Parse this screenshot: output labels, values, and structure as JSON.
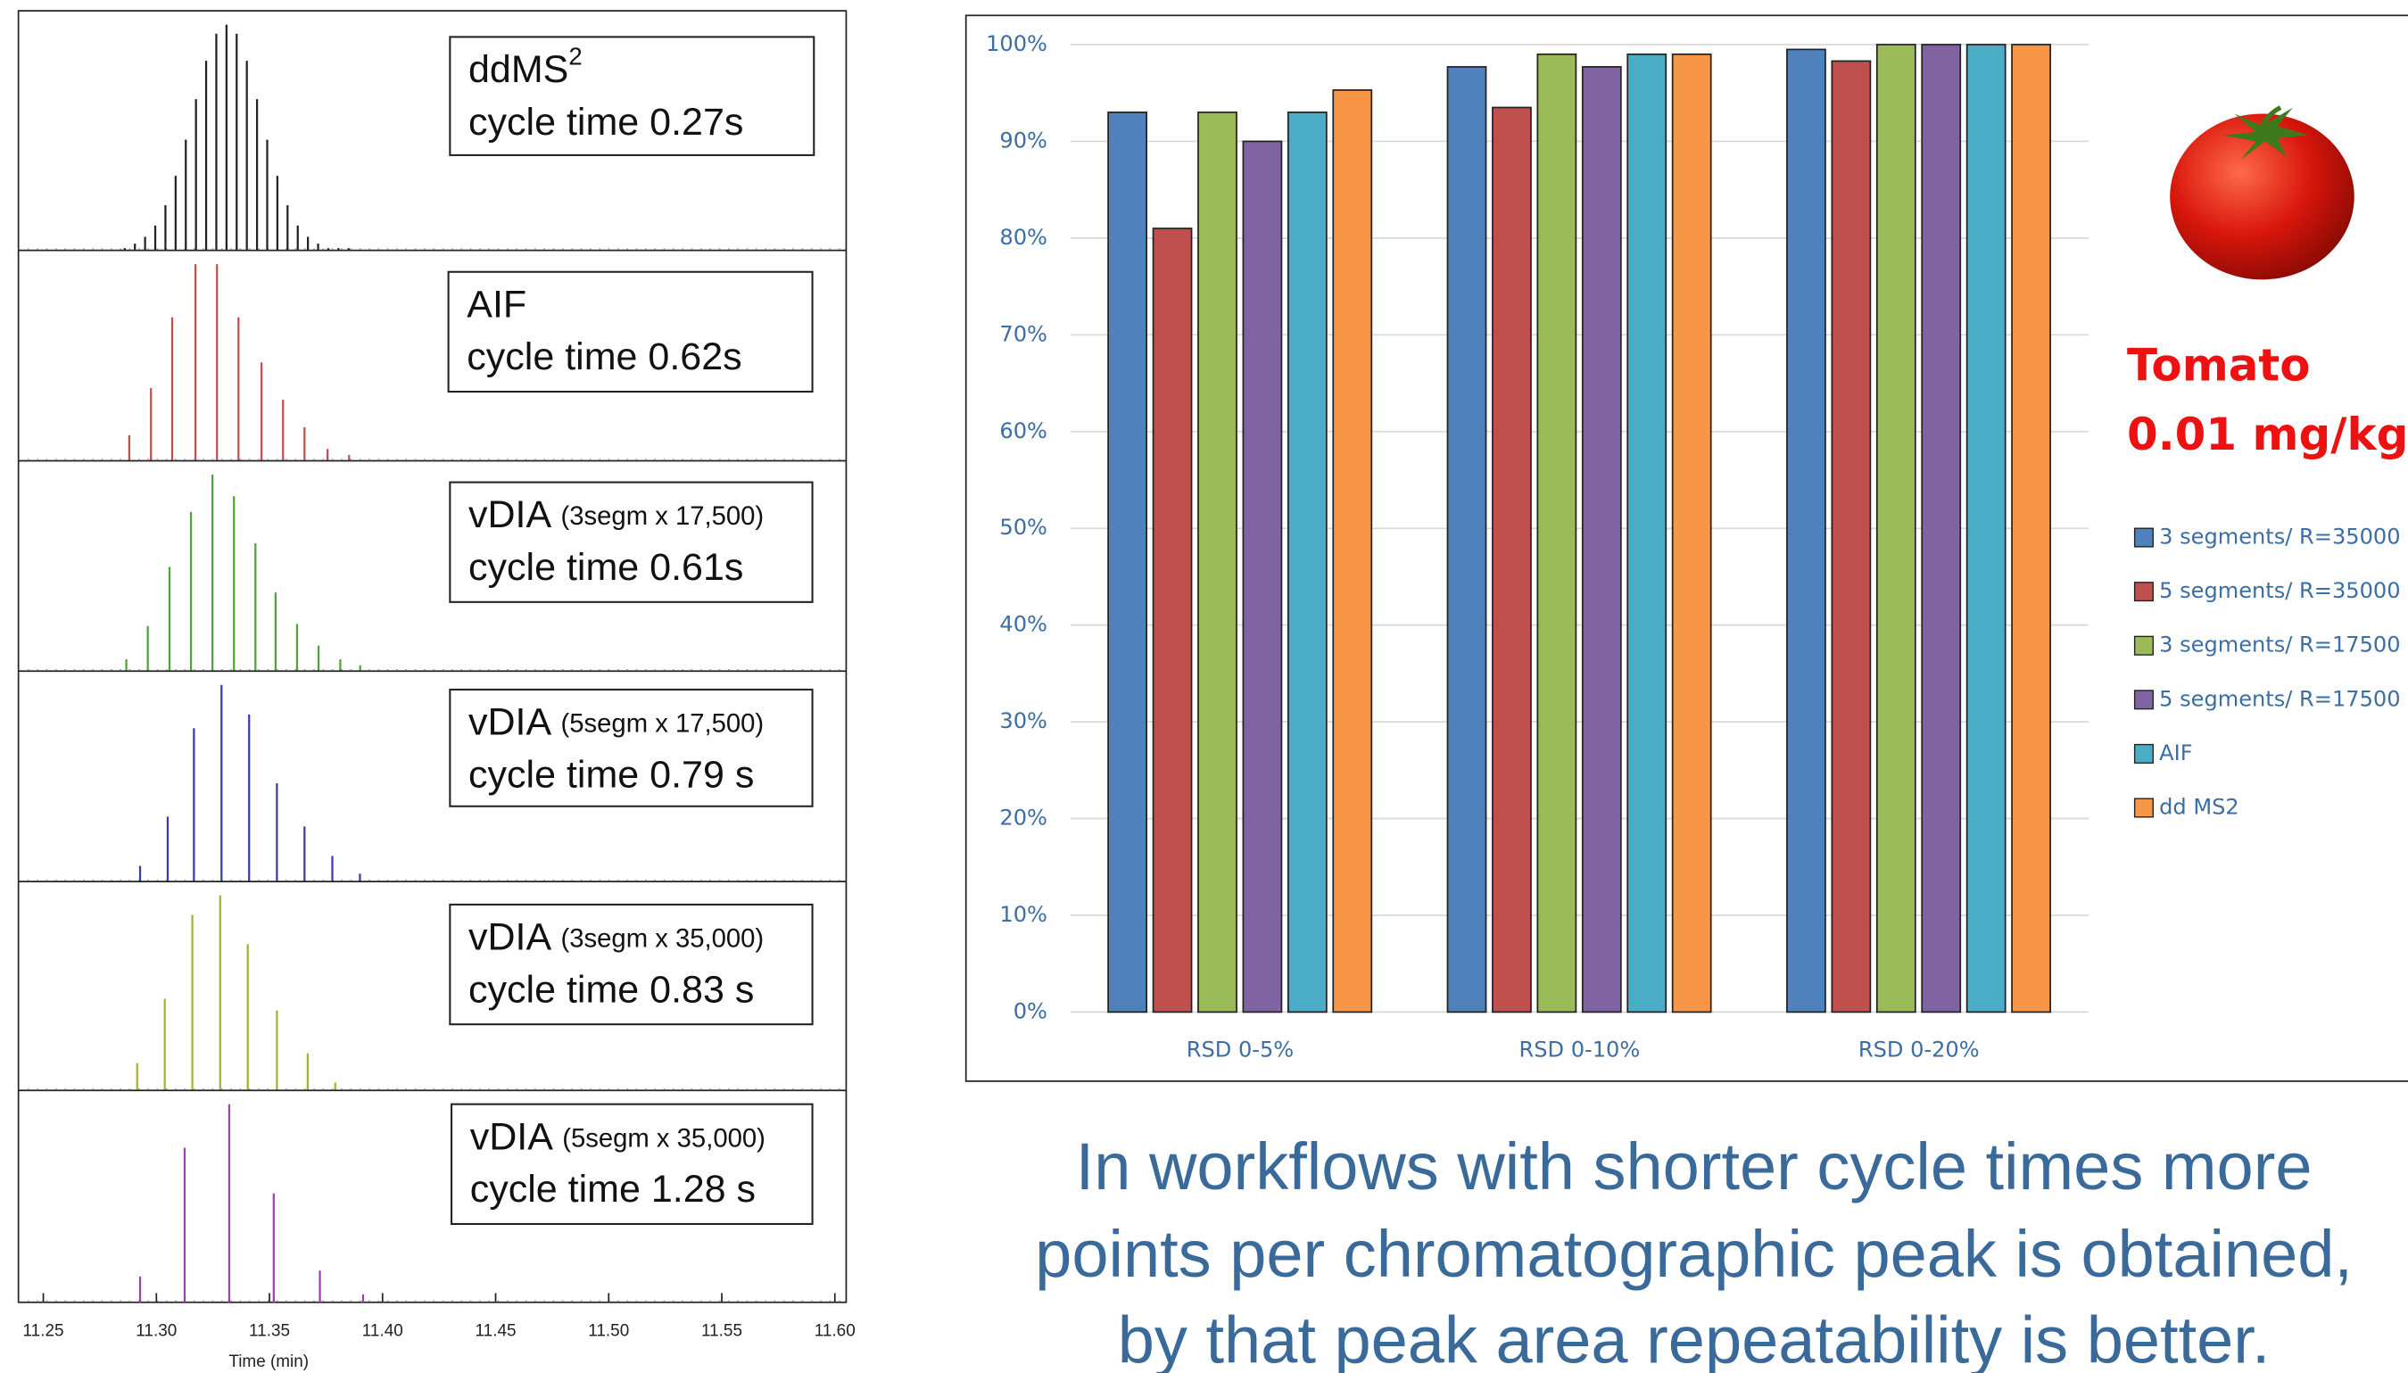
{
  "chart_data": [
    {
      "type": "stick",
      "xlabel": "Time (min)",
      "xlim": [
        11.239,
        11.605
      ],
      "ylim": [
        0,
        100
      ],
      "xticks": [
        11.25,
        {
          "value": 11.3,
          "label": "11.30"
        },
        11.35,
        {
          "value": 11.4,
          "label": "11.40"
        },
        11.45,
        {
          "value": 11.5,
          "label": "11.50"
        },
        11.55,
        {
          "value": 11.6,
          "label": "11.60"
        }
      ],
      "panels": [
        {
          "main": "ddMS",
          "sup": "2",
          "cycle": "cycle time 0.27s",
          "color": "#222222",
          "x": [
            11.286,
            11.2905,
            11.295,
            11.2995,
            11.304,
            11.3085,
            11.313,
            11.3175,
            11.322,
            11.3265,
            11.331,
            11.3355,
            11.34,
            11.3445,
            11.349,
            11.3535,
            11.358,
            11.3625,
            11.367,
            11.3715,
            11.376,
            11.3805,
            11.385
          ],
          "values": [
            1,
            3,
            6,
            11,
            20,
            33,
            49,
            67,
            84,
            96,
            100,
            96,
            84,
            67,
            49,
            33,
            20,
            11,
            6,
            3,
            1,
            1,
            1
          ]
        },
        {
          "main": "AIF",
          "cycle": "cycle time 0.62s",
          "color": "#c0504d",
          "x": [
            11.288,
            11.2976,
            11.307,
            11.3173,
            11.3268,
            11.3363,
            11.3465,
            11.356,
            11.3655,
            11.3757,
            11.3852
          ],
          "values": [
            13,
            37,
            73,
            100,
            100,
            73,
            50,
            31,
            17,
            6,
            3
          ]
        },
        {
          "main": "vDIA",
          "sub": "(3segm x 17,500)",
          "cycle": "cycle time 0.61s",
          "color": "#4ea43a",
          "x": [
            11.2867,
            11.2962,
            11.3058,
            11.3153,
            11.3248,
            11.3343,
            11.3438,
            11.3527,
            11.3622,
            11.3717,
            11.3813,
            11.3901
          ],
          "values": [
            6,
            23,
            53,
            81,
            100,
            89,
            65,
            40,
            24,
            13,
            6,
            3
          ]
        },
        {
          "main": "vDIA",
          "sub": "(5segm x 17,500)",
          "cycle": "cycle time 0.79 s",
          "color": "#3a3aa8",
          "x": [
            11.2928,
            11.305,
            11.3166,
            11.3288,
            11.341,
            11.3533,
            11.3655,
            11.3778,
            11.39
          ],
          "values": [
            8,
            33,
            78,
            100,
            85,
            50,
            28,
            13,
            4
          ]
        },
        {
          "main": "vDIA",
          "sub": "(3segm x 35,000)",
          "cycle": "cycle time 0.83 s",
          "color": "#a8b030",
          "x": [
            11.2915,
            11.3037,
            11.3159,
            11.3282,
            11.3404,
            11.3533,
            11.3669,
            11.3791
          ],
          "values": [
            14,
            47,
            90,
            100,
            75,
            41,
            19,
            4
          ]
        },
        {
          "main": "vDIA",
          "sub": "(5segm x 35,000)",
          "cycle": "cycle time 1.28 s",
          "color": "#a040b0",
          "x": [
            11.2928,
            11.3125,
            11.3322,
            11.3519,
            11.3723,
            11.3914
          ],
          "values": [
            13,
            78,
            100,
            55,
            16,
            4
          ]
        }
      ]
    },
    {
      "type": "bar",
      "categories": [
        "RSD 0-5%",
        "RSD 0-10%",
        "RSD 0-20%"
      ],
      "ylim": [
        0,
        100
      ],
      "yticks": [
        {
          "value": 0,
          "label": "0%"
        },
        {
          "value": 10,
          "label": "10%"
        },
        {
          "value": 20,
          "label": "20%"
        },
        {
          "value": 30,
          "label": "30%"
        },
        {
          "value": 40,
          "label": "40%"
        },
        {
          "value": 50,
          "label": "50%"
        },
        {
          "value": 60,
          "label": "60%"
        },
        {
          "value": 70,
          "label": "70%"
        },
        {
          "value": 80,
          "label": "80%"
        },
        {
          "value": 90,
          "label": "90%"
        },
        {
          "value": 100,
          "label": "100%"
        }
      ],
      "grid": true,
      "series": [
        {
          "name": "3 segments/ R=35000",
          "color": "#4f81bd",
          "values": [
            93,
            97.7,
            99.5
          ]
        },
        {
          "name": "5 segments/ R=35000",
          "color": "#c0504d",
          "values": [
            81,
            93.5,
            98.3
          ]
        },
        {
          "name": "3 segments/ R=17500",
          "color": "#9bbb59",
          "values": [
            93,
            99,
            100
          ]
        },
        {
          "name": "5 segments/ R=17500",
          "color": "#8064a2",
          "values": [
            90,
            97.7,
            100
          ]
        },
        {
          "name": "AIF",
          "color": "#4bacc6",
          "values": [
            93,
            99,
            100
          ]
        },
        {
          "name": "dd MS2",
          "color": "#f79646",
          "values": [
            95.3,
            99,
            100
          ]
        }
      ]
    }
  ],
  "sample": {
    "name": "Tomato",
    "level": "0.01 mg/kg"
  },
  "caption": [
    "In workflows with shorter cycle times more",
    "points per chromatographic peak is obtained,",
    "by that peak area repeatability is better."
  ]
}
